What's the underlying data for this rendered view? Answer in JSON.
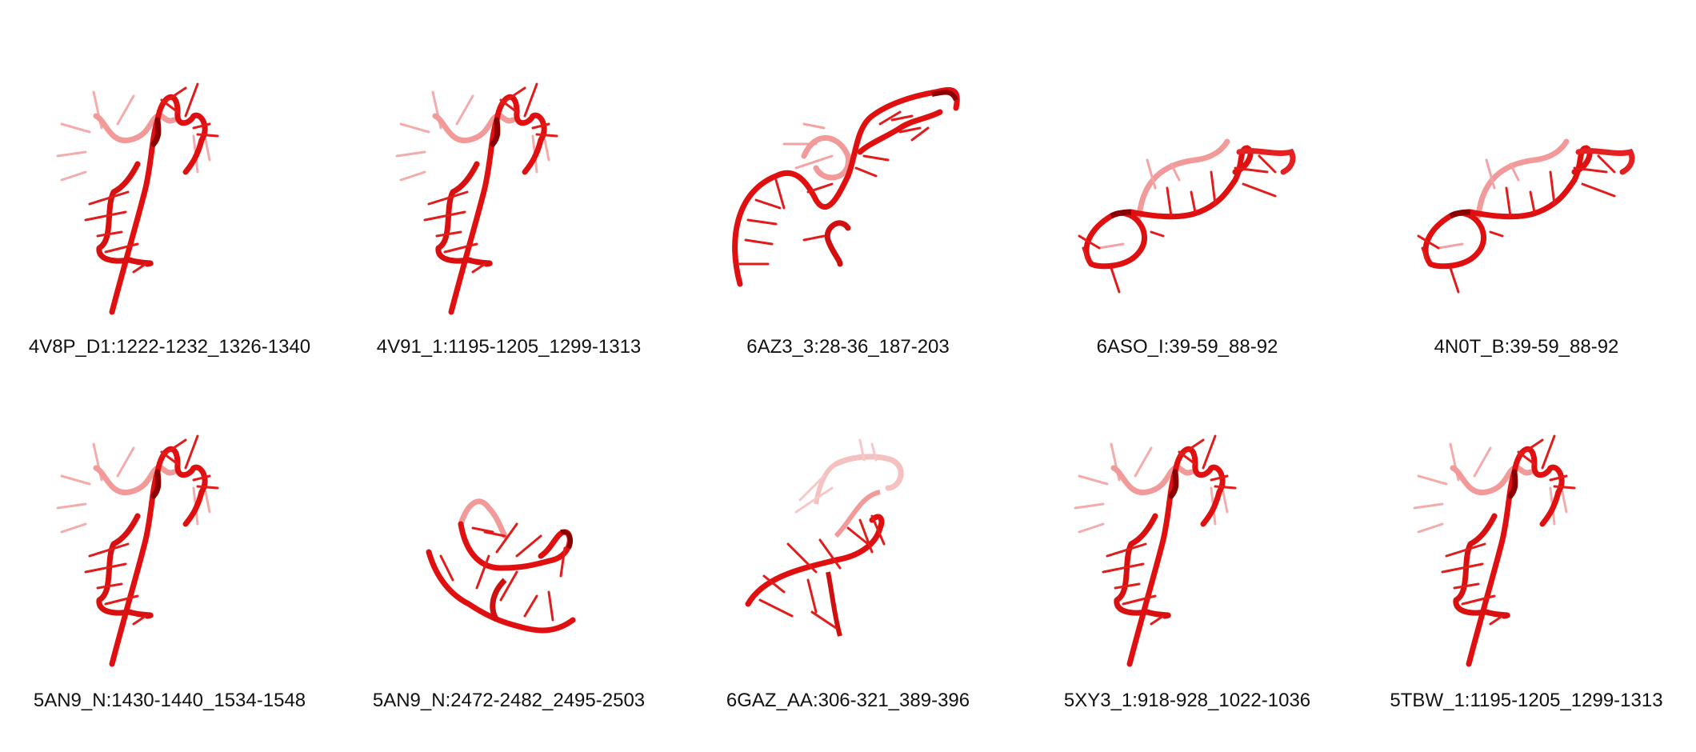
{
  "colors": {
    "backbone": "#e01010",
    "backbone_dark": "#8a0000",
    "backbone_light": "#f29a9a",
    "stick": "#e21b1b",
    "stick_light": "#f3a3a3",
    "caption_text": "#111111",
    "background": "#ffffff"
  },
  "gallery": {
    "items": [
      {
        "label": "4V8P_D1:1222-1232_1326-1340",
        "icon": "rna-motif-structure"
      },
      {
        "label": "4V91_1:1195-1205_1299-1313",
        "icon": "rna-motif-structure"
      },
      {
        "label": "6AZ3_3:28-36_187-203",
        "icon": "rna-motif-structure"
      },
      {
        "label": "6ASO_I:39-59_88-92",
        "icon": "rna-motif-structure"
      },
      {
        "label": "4N0T_B:39-59_88-92",
        "icon": "rna-motif-structure"
      },
      {
        "label": "5AN9_N:1430-1440_1534-1548",
        "icon": "rna-motif-structure"
      },
      {
        "label": "5AN9_N:2472-2482_2495-2503",
        "icon": "rna-motif-structure"
      },
      {
        "label": "6GAZ_AA:306-321_389-396",
        "icon": "rna-motif-structure"
      },
      {
        "label": "5XY3_1:918-928_1022-1036",
        "icon": "rna-motif-structure"
      },
      {
        "label": "5TBW_1:1195-1205_1299-1313",
        "icon": "rna-motif-structure"
      }
    ]
  }
}
